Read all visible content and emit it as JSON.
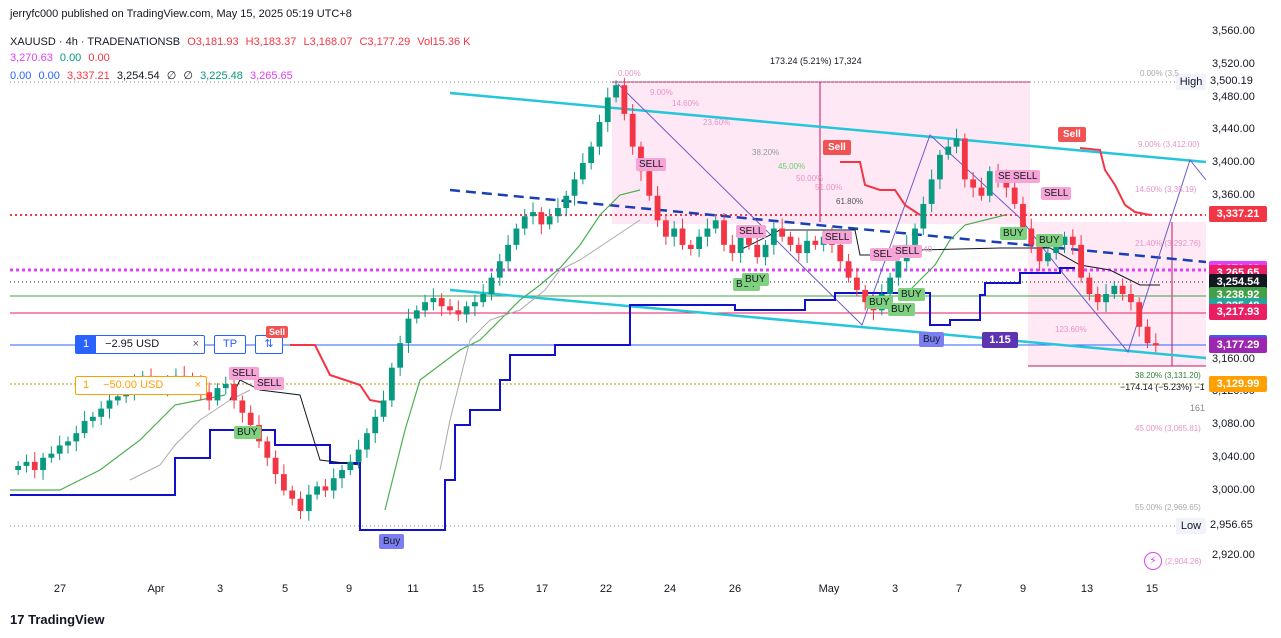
{
  "publisher_line": "jerryfc000 published on TradingView.com, May 15, 2025 05:19 UTC+8",
  "header": {
    "symbol": "XAUUSD · 4h · TRADENATIONSB",
    "open": "O3,181.93",
    "high": "H3,183.37",
    "low": "L3,168.07",
    "close": "C3,177.29",
    "volume": "Vol15.36 K",
    "row2": [
      "3,270.63",
      "0.00",
      "0.00"
    ],
    "row3": [
      "0.00",
      "0.00",
      "3,337.21",
      "3,254.54",
      "∅",
      "∅",
      "3,225.48",
      "3,265.65"
    ]
  },
  "brand": "TradingView",
  "colors": {
    "up": "#089981",
    "down": "#f23645",
    "supertrend": "#1111cc",
    "channel": "#26c6da",
    "fib_zone": "#fde0f1"
  },
  "high_label": "High",
  "high_value": "3,500.19",
  "low_label": "Low",
  "low_value": "2,956.65",
  "measure_top": "173.24 (5.21%) 17,324",
  "measure_bottom": "−174.14 (−5.23%) −1",
  "fib_left": [
    "0.00%",
    "9.00%",
    "14.60%",
    "23.60%",
    "38.20%",
    "45.00%",
    "50.00%",
    "51.00%",
    "61.80%",
    "123.60%"
  ],
  "fib_right": [
    "0.00% (3,5",
    "9.00% (3,412.00)",
    "14.60% (3,35.19)",
    "21.40% (3,292.76)",
    "38.20% (3,131.20)",
    "45.00% (3,065.81)",
    "55.00% (2,969.65)",
    "(2,904.26)"
  ],
  "stray_label": "161",
  "fib_zone_label": "25.40",
  "orders": {
    "order1": {
      "qty": "1",
      "pnl": "−2.95 USD",
      "tp": "TP",
      "close": "×"
    },
    "order2": {
      "qty": "1",
      "pnl": "−50.00 USD",
      "close": "×"
    }
  },
  "signals": {
    "sell": [
      "SELL",
      "SELL",
      "SELL",
      "SELL",
      "SELL",
      "SELL",
      "SELL",
      "SELL",
      "SELL",
      "SELL"
    ],
    "buy": [
      "BUY",
      "BUY",
      "BUY",
      "BUY",
      "BUY",
      "BUY",
      "BUY",
      "BUY"
    ],
    "sell_big": [
      "Sell",
      "Sell",
      "Sell"
    ],
    "buy_big": [
      "Buy",
      "Buy"
    ],
    "value_badge": "1.15"
  },
  "chart_data": {
    "type": "candlestick",
    "title": "XAUUSD · 4h · TRADENATIONSB",
    "xlabel": "",
    "ylabel": "",
    "ylim": [
      2900,
      3580
    ],
    "y_ticks": [
      "3,560.00",
      "3,520.00",
      "3,480.00",
      "3,440.00",
      "3,400.00",
      "3,360.00",
      "3,160.00",
      "3,120.00",
      "3,080.00",
      "3,040.00",
      "3,000.00",
      "2,920.00"
    ],
    "x_ticks": [
      "27",
      "Apr",
      "3",
      "5",
      "9",
      "11",
      "15",
      "17",
      "22",
      "24",
      "26",
      "May",
      "3",
      "7",
      "9",
      "13",
      "15"
    ],
    "price_tags": [
      {
        "value": "3,337.21",
        "color": "#f23645"
      },
      {
        "value": "3,270.63",
        "color": "#e040fb"
      },
      {
        "value": "3,265.65",
        "color": "#e91e63"
      },
      {
        "value": "3,254.54",
        "color": "#131722"
      },
      {
        "value": "3,238.92",
        "color": "#43a047"
      },
      {
        "value": "3,225.48",
        "color": "#26a69a"
      },
      {
        "value": "3,217.93",
        "color": "#e91e63"
      },
      {
        "value": "3,179.99",
        "color": "#2962ff"
      },
      {
        "value": "3,177.29",
        "color": "#9c27b0"
      },
      {
        "value": "3,129.99",
        "color": "#ffa000"
      }
    ],
    "close_series": [
      3030,
      3035,
      3025,
      3040,
      3045,
      3055,
      3060,
      3070,
      3085,
      3090,
      3100,
      3110,
      3115,
      3120,
      3130,
      3140,
      3128,
      3125,
      3135,
      3140,
      3138,
      3132,
      3120,
      3110,
      3125,
      3130,
      3110,
      3095,
      3080,
      3060,
      3040,
      3020,
      3000,
      2990,
      2975,
      2995,
      3005,
      3000,
      3015,
      3025,
      3035,
      3050,
      3070,
      3090,
      3110,
      3150,
      3180,
      3210,
      3220,
      3230,
      3235,
      3225,
      3220,
      3215,
      3225,
      3230,
      3240,
      3260,
      3280,
      3300,
      3320,
      3335,
      3340,
      3325,
      3335,
      3345,
      3360,
      3380,
      3400,
      3420,
      3450,
      3480,
      3495,
      3460,
      3420,
      3390,
      3360,
      3330,
      3310,
      3320,
      3300,
      3295,
      3310,
      3320,
      3330,
      3300,
      3290,
      3310,
      3300,
      3285,
      3300,
      3320,
      3310,
      3300,
      3290,
      3305,
      3300,
      3310,
      3300,
      3280,
      3260,
      3245,
      3230,
      3220,
      3240,
      3260,
      3280,
      3300,
      3320,
      3350,
      3380,
      3410,
      3420,
      3430,
      3380,
      3370,
      3360,
      3390,
      3380,
      3370,
      3350,
      3320,
      3300,
      3280,
      3290,
      3300,
      3310,
      3300,
      3260,
      3240,
      3230,
      3240,
      3250,
      3240,
      3230,
      3200,
      3180,
      3177
    ]
  }
}
